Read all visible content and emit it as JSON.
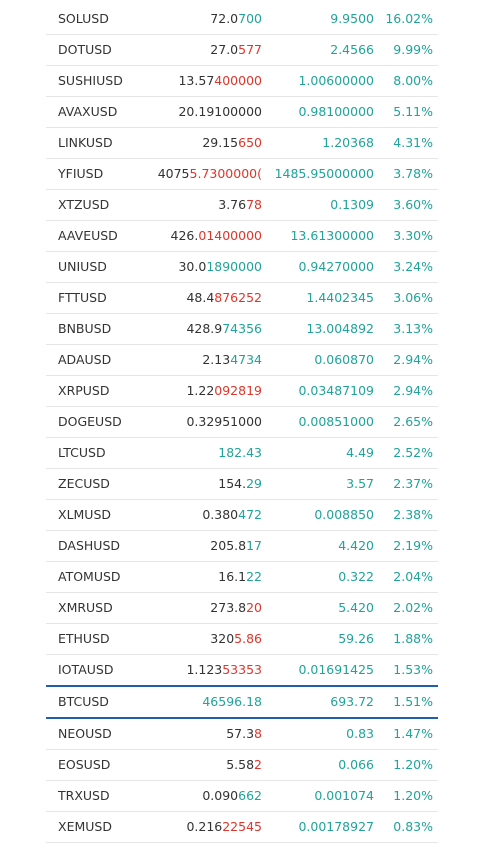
{
  "rows": [
    {
      "symbol": "SOLUSD",
      "price_base": "72.0",
      "price_tail": "700",
      "tail": "up",
      "change": "9.9500",
      "percent": "16.02%"
    },
    {
      "symbol": "DOTUSD",
      "price_base": "27.0",
      "price_tail": "577",
      "tail": "down",
      "change": "2.4566",
      "percent": "9.99%"
    },
    {
      "symbol": "SUSHIUSD",
      "price_base": "13.57",
      "price_tail": "400000",
      "tail": "down",
      "change": "1.00600000",
      "percent": "8.00%"
    },
    {
      "symbol": "AVAXUSD",
      "price_base": "20.19100000",
      "price_tail": "",
      "tail": "none",
      "change": "0.98100000",
      "percent": "5.11%"
    },
    {
      "symbol": "LINKUSD",
      "price_base": "29.15",
      "price_tail": "650",
      "tail": "down",
      "change": "1.20368",
      "percent": "4.31%"
    },
    {
      "symbol": "YFIUSD",
      "price_base": "4075",
      "price_tail": "5.7300000(",
      "tail": "down",
      "change": "1485.95000000",
      "percent": "3.78%"
    },
    {
      "symbol": "XTZUSD",
      "price_base": "3.76",
      "price_tail": "78",
      "tail": "down",
      "change": "0.1309",
      "percent": "3.60%"
    },
    {
      "symbol": "AAVEUSD",
      "price_base": "426.",
      "price_tail": "01400000",
      "tail": "down",
      "change": "13.61300000",
      "percent": "3.30%"
    },
    {
      "symbol": "UNIUSD",
      "price_base": "30.0",
      "price_tail": "1890000",
      "tail": "up",
      "change": "0.94270000",
      "percent": "3.24%"
    },
    {
      "symbol": "FTTUSD",
      "price_base": "48.4",
      "price_tail": "876252",
      "tail": "down",
      "change": "1.4402345",
      "percent": "3.06%"
    },
    {
      "symbol": "BNBUSD",
      "price_base": "428.9",
      "price_tail": "74356",
      "tail": "up",
      "change": "13.004892",
      "percent": "3.13%"
    },
    {
      "symbol": "ADAUSD",
      "price_base": "2.13",
      "price_tail": "4734",
      "tail": "up",
      "change": "0.060870",
      "percent": "2.94%"
    },
    {
      "symbol": "XRPUSD",
      "price_base": "1.22",
      "price_tail": "092819",
      "tail": "down",
      "change": "0.03487109",
      "percent": "2.94%"
    },
    {
      "symbol": "DOGEUSD",
      "price_base": "0.32951000",
      "price_tail": "",
      "tail": "none",
      "change": "0.00851000",
      "percent": "2.65%"
    },
    {
      "symbol": "LTCUSD",
      "price_base": "",
      "price_tail": "182.43",
      "tail": "up",
      "change": "4.49",
      "percent": "2.52%"
    },
    {
      "symbol": "ZECUSD",
      "price_base": "154.",
      "price_tail": "29",
      "tail": "up",
      "change": "3.57",
      "percent": "2.37%"
    },
    {
      "symbol": "XLMUSD",
      "price_base": "0.380",
      "price_tail": "472",
      "tail": "up",
      "change": "0.008850",
      "percent": "2.38%"
    },
    {
      "symbol": "DASHUSD",
      "price_base": "205.8",
      "price_tail": "17",
      "tail": "up",
      "change": "4.420",
      "percent": "2.19%"
    },
    {
      "symbol": "ATOMUSD",
      "price_base": "16.1",
      "price_tail": "22",
      "tail": "up",
      "change": "0.322",
      "percent": "2.04%"
    },
    {
      "symbol": "XMRUSD",
      "price_base": "273.8",
      "price_tail": "20",
      "tail": "down",
      "change": "5.420",
      "percent": "2.02%"
    },
    {
      "symbol": "ETHUSD",
      "price_base": "320",
      "price_tail": "5.86",
      "tail": "down",
      "change": "59.26",
      "percent": "1.88%"
    },
    {
      "symbol": "IOTAUSD",
      "price_base": "1.123",
      "price_tail": "53353",
      "tail": "down",
      "change": "0.01691425",
      "percent": "1.53%"
    },
    {
      "symbol": "BTCUSD",
      "price_base": "",
      "price_tail": "46596.18",
      "tail": "up",
      "change": "693.72",
      "percent": "1.51%",
      "highlight": true
    },
    {
      "symbol": "NEOUSD",
      "price_base": "57.3",
      "price_tail": "8",
      "tail": "down",
      "change": "0.83",
      "percent": "1.47%"
    },
    {
      "symbol": "EOSUSD",
      "price_base": "5.58",
      "price_tail": "2",
      "tail": "down",
      "change": "0.066",
      "percent": "1.20%"
    },
    {
      "symbol": "TRXUSD",
      "price_base": "0.090",
      "price_tail": "662",
      "tail": "up",
      "change": "0.001074",
      "percent": "1.20%"
    },
    {
      "symbol": "XEMUSD",
      "price_base": "0.216",
      "price_tail": "22545",
      "tail": "down",
      "change": "0.00178927",
      "percent": "0.83%"
    }
  ]
}
